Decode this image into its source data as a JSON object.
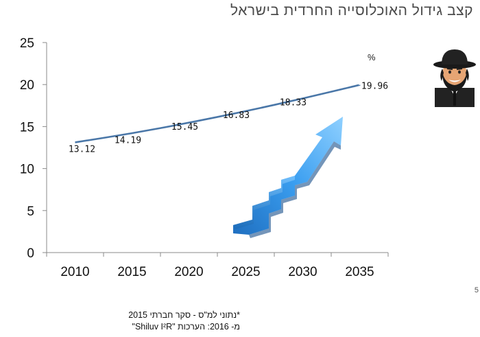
{
  "slide": {
    "title": "קצב גידול האוכלוסייה החרדית בישראל",
    "percent_label": "%",
    "source_line1": "*נתוני למ\"ס - סקר חברתי 2015",
    "source_line2": "מ- 2016: הערכות \"Shiluv I²R\"",
    "page_number": "5"
  },
  "icons": [
    "haredi-man-icon",
    "rising-arrow-stairs-icon"
  ],
  "colors": {
    "line": "#4a77a8",
    "arrow": "#2e8fe0",
    "axis": "#8a8a8a"
  },
  "chart_data": {
    "type": "line",
    "x": [
      2010,
      2015,
      2020,
      2025,
      2030,
      2035
    ],
    "y_ticks": [
      0,
      5,
      10,
      15,
      20,
      25
    ],
    "ylim": [
      0,
      25
    ],
    "title": "",
    "xlabel": "",
    "ylabel": "",
    "grid": false,
    "series": [
      {
        "values": [
          13.12,
          14.19,
          15.45,
          16.83,
          18.33,
          19.96
        ],
        "labels": [
          "13.12",
          "14.19",
          "15.45",
          "16.83",
          "18.33",
          "19.96"
        ]
      }
    ]
  }
}
